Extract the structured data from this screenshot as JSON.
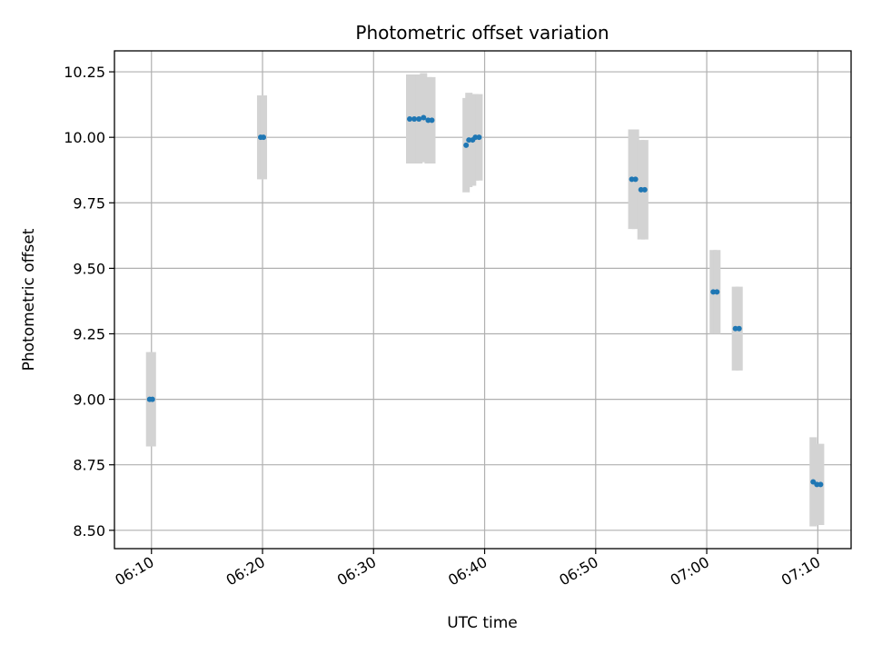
{
  "chart_data": {
    "type": "scatter",
    "title": "Photometric offset variation",
    "xlabel": "UTC time",
    "ylabel": "Photometric offset",
    "x_axis_type": "time",
    "x_tick_labels": [
      "06:10",
      "06:20",
      "06:30",
      "06:40",
      "06:50",
      "07:00",
      "07:10"
    ],
    "y_tick_labels": [
      "8.50",
      "8.75",
      "9.00",
      "9.25",
      "9.50",
      "9.75",
      "10.00",
      "10.25"
    ],
    "xlim": [
      "06:06:40",
      "07:13:00"
    ],
    "ylim": [
      8.43,
      10.33
    ],
    "grid": true,
    "colors": {
      "points": "#1f77b4",
      "error_bars": "#d3d3d3"
    },
    "series": [
      {
        "points": [
          {
            "time": "06:09:50",
            "y": 9.0,
            "err": 0.18
          },
          {
            "time": "06:10:05",
            "y": 9.0,
            "err": 0.18
          },
          {
            "time": "06:19:50",
            "y": 10.0,
            "err": 0.16
          },
          {
            "time": "06:20:05",
            "y": 10.0,
            "err": 0.16
          },
          {
            "time": "06:33:15",
            "y": 10.07,
            "err": 0.17
          },
          {
            "time": "06:33:40",
            "y": 10.07,
            "err": 0.17
          },
          {
            "time": "06:34:05",
            "y": 10.07,
            "err": 0.17
          },
          {
            "time": "06:34:30",
            "y": 10.075,
            "err": 0.17
          },
          {
            "time": "06:34:55",
            "y": 10.065,
            "err": 0.165
          },
          {
            "time": "06:35:15",
            "y": 10.065,
            "err": 0.165
          },
          {
            "time": "06:38:20",
            "y": 9.97,
            "err": 0.18
          },
          {
            "time": "06:38:35",
            "y": 9.99,
            "err": 0.18
          },
          {
            "time": "06:38:55",
            "y": 9.99,
            "err": 0.175
          },
          {
            "time": "06:39:10",
            "y": 10.0,
            "err": 0.165
          },
          {
            "time": "06:39:30",
            "y": 10.0,
            "err": 0.165
          },
          {
            "time": "06:53:15",
            "y": 9.84,
            "err": 0.19
          },
          {
            "time": "06:53:35",
            "y": 9.84,
            "err": 0.19
          },
          {
            "time": "06:54:05",
            "y": 9.8,
            "err": 0.19
          },
          {
            "time": "06:54:25",
            "y": 9.8,
            "err": 0.19
          },
          {
            "time": "07:00:35",
            "y": 9.41,
            "err": 0.16
          },
          {
            "time": "07:00:55",
            "y": 9.41,
            "err": 0.16
          },
          {
            "time": "07:02:35",
            "y": 9.27,
            "err": 0.16
          },
          {
            "time": "07:02:55",
            "y": 9.27,
            "err": 0.16
          },
          {
            "time": "07:09:35",
            "y": 8.685,
            "err": 0.17
          },
          {
            "time": "07:09:55",
            "y": 8.675,
            "err": 0.155
          },
          {
            "time": "07:10:15",
            "y": 8.675,
            "err": 0.155
          }
        ]
      }
    ]
  }
}
